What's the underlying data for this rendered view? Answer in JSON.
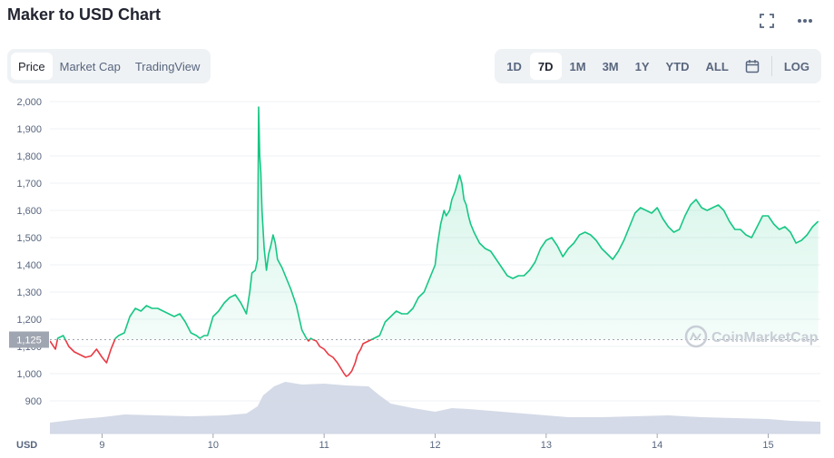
{
  "header": {
    "title": "Maker to USD Chart"
  },
  "icons": {
    "fullscreen": "fullscreen-icon",
    "more": "more-icon",
    "calendar": "calendar-icon",
    "watermark_logo": "coinmarketcap-logo"
  },
  "tabs_left": [
    "Price",
    "Market Cap",
    "TradingView"
  ],
  "tabs_left_active": 0,
  "tabs_right": [
    "1D",
    "7D",
    "1M",
    "3M",
    "1Y",
    "YTD",
    "ALL"
  ],
  "tabs_right_active": 1,
  "log_label": "LOG",
  "watermark": "CoinMarketCap",
  "colors": {
    "up": "#16c784",
    "down": "#ea3943",
    "volume": "#cfd6e4",
    "baseline_label_bg": "#a0a6b1"
  },
  "chart_data": {
    "type": "line",
    "currency_label": "USD",
    "baseline": {
      "value": 1125,
      "label": "1,125"
    },
    "y_ticks": [
      "2,000",
      "1,900",
      "1,800",
      "1,700",
      "1,600",
      "1,500",
      "1,400",
      "1,300",
      "1,200",
      "1,100",
      "1,000",
      "900"
    ],
    "ylim": [
      780,
      2040
    ],
    "x_ticks": [
      "9",
      "10",
      "11",
      "12",
      "13",
      "14",
      "15"
    ],
    "x_tick_values": [
      9,
      10,
      11,
      12,
      13,
      14,
      15
    ],
    "xlim": [
      8.53,
      15.47
    ],
    "series": [
      {
        "x": [
          8.53,
          8.58,
          8.6,
          8.65,
          8.7,
          8.75,
          8.8,
          8.85,
          8.9,
          8.95,
          9.0,
          9.02,
          9.04,
          9.08,
          9.12,
          9.15,
          9.2,
          9.25,
          9.3,
          9.35,
          9.4,
          9.45,
          9.5,
          9.55,
          9.6,
          9.65,
          9.7,
          9.75,
          9.8,
          9.85,
          9.88,
          9.92,
          9.95,
          10.0,
          10.05,
          10.1,
          10.15,
          10.2,
          10.25,
          10.3,
          10.33,
          10.35,
          10.38,
          10.4,
          10.41,
          10.42,
          10.43,
          10.44,
          10.46,
          10.48,
          10.5,
          10.52,
          10.54,
          10.56,
          10.58,
          10.62,
          10.66,
          10.7,
          10.75,
          10.8,
          10.84,
          10.86,
          10.88,
          10.9,
          10.93,
          10.96,
          11.0,
          11.04,
          11.08,
          11.12,
          11.15,
          11.18,
          11.2,
          11.22,
          11.25,
          11.28,
          11.3,
          11.33,
          11.35,
          11.4,
          11.45,
          11.5,
          11.55,
          11.6,
          11.65,
          11.7,
          11.75,
          11.8,
          11.85,
          11.9,
          11.95,
          12.0,
          12.02,
          12.05,
          12.08,
          12.1,
          12.13,
          12.15,
          12.18,
          12.2,
          12.22,
          12.24,
          12.26,
          12.28,
          12.3,
          12.32,
          12.35,
          12.4,
          12.45,
          12.5,
          12.55,
          12.6,
          12.65,
          12.7,
          12.75,
          12.8,
          12.85,
          12.9,
          12.95,
          13.0,
          13.05,
          13.1,
          13.15,
          13.2,
          13.25,
          13.3,
          13.35,
          13.4,
          13.45,
          13.5,
          13.55,
          13.6,
          13.65,
          13.7,
          13.75,
          13.8,
          13.85,
          13.9,
          13.95,
          14.0,
          14.05,
          14.1,
          14.15,
          14.2,
          14.25,
          14.3,
          14.35,
          14.4,
          14.45,
          14.5,
          14.55,
          14.6,
          14.65,
          14.7,
          14.75,
          14.8,
          14.85,
          14.9,
          14.95,
          15.0,
          15.05,
          15.1,
          15.15,
          15.2,
          15.25,
          15.3,
          15.35,
          15.4,
          15.45
        ],
        "y": [
          1120,
          1090,
          1130,
          1140,
          1100,
          1080,
          1070,
          1060,
          1065,
          1090,
          1060,
          1050,
          1040,
          1090,
          1130,
          1140,
          1150,
          1210,
          1240,
          1230,
          1250,
          1240,
          1240,
          1230,
          1220,
          1210,
          1220,
          1190,
          1150,
          1140,
          1130,
          1140,
          1140,
          1210,
          1230,
          1260,
          1280,
          1290,
          1260,
          1220,
          1300,
          1370,
          1380,
          1420,
          1980,
          1800,
          1740,
          1600,
          1460,
          1380,
          1440,
          1470,
          1510,
          1480,
          1420,
          1390,
          1350,
          1310,
          1250,
          1160,
          1130,
          1120,
          1130,
          1125,
          1120,
          1100,
          1090,
          1070,
          1060,
          1040,
          1020,
          1000,
          990,
          995,
          1010,
          1040,
          1070,
          1090,
          1110,
          1120,
          1130,
          1140,
          1190,
          1210,
          1230,
          1220,
          1220,
          1240,
          1280,
          1300,
          1350,
          1400,
          1470,
          1550,
          1600,
          1580,
          1600,
          1640,
          1670,
          1700,
          1730,
          1700,
          1640,
          1620,
          1580,
          1550,
          1520,
          1480,
          1460,
          1450,
          1420,
          1390,
          1360,
          1350,
          1360,
          1360,
          1380,
          1410,
          1460,
          1490,
          1500,
          1470,
          1430,
          1460,
          1480,
          1510,
          1520,
          1510,
          1490,
          1460,
          1440,
          1420,
          1450,
          1490,
          1540,
          1590,
          1610,
          1600,
          1590,
          1610,
          1570,
          1540,
          1520,
          1530,
          1580,
          1620,
          1640,
          1610,
          1600,
          1610,
          1620,
          1600,
          1560,
          1530,
          1530,
          1510,
          1500,
          1540,
          1580,
          1580,
          1550,
          1530,
          1540,
          1520,
          1480,
          1490,
          1510,
          1540,
          1560
        ]
      }
    ]
  }
}
